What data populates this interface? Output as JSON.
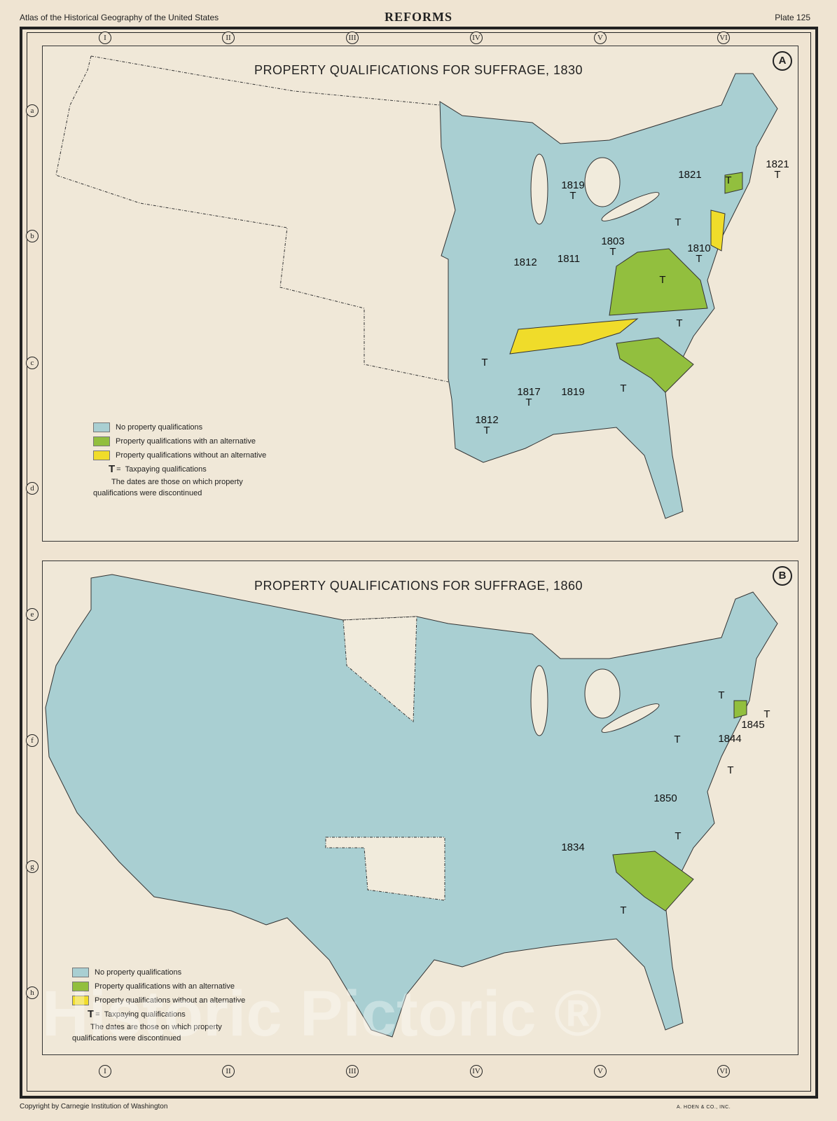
{
  "header": {
    "atlas": "Atlas of the Historical Geography of the United States",
    "title": "REFORMS",
    "plate": "Plate 125"
  },
  "footer": {
    "copyright": "Copyright by Carnegie Institution of Washington",
    "printer": "A. HOEN & CO., INC."
  },
  "grid": {
    "columns": [
      "I",
      "II",
      "III",
      "IV",
      "V",
      "VI"
    ],
    "rows_top": [
      "a",
      "b",
      "c",
      "d"
    ],
    "rows_bottom": [
      "e",
      "f",
      "g",
      "h"
    ]
  },
  "colors": {
    "none": "#a9cfd2",
    "with_alternative": "#92bf3e",
    "without_alternative": "#f0dc2a",
    "unmapped": "#f1ebdc"
  },
  "map_a": {
    "letter": "A",
    "title": "PROPERTY QUALIFICATIONS FOR SUFFRAGE, 1830",
    "labels": [
      "1821",
      "1821\nT",
      "T",
      "1819\nT",
      "T",
      "1803\nT",
      "1810\nT",
      "1812",
      "1811",
      "T",
      "T",
      "T",
      "1817\nT",
      "1819",
      "T",
      "1812\nT"
    ]
  },
  "map_b": {
    "letter": "B",
    "title": "PROPERTY QUALIFICATIONS FOR SUFFRAGE, 1860",
    "labels": [
      "T",
      "T",
      "1845",
      "1844",
      "T",
      "T",
      "1850",
      "1834",
      "T",
      "T"
    ]
  },
  "legend": {
    "items": [
      {
        "label": "No property qualifications",
        "color": "#a9cfd2"
      },
      {
        "label": "Property qualifications with an alternative",
        "color": "#92bf3e"
      },
      {
        "label": "Property qualifications without an alternative",
        "color": "#f0dc2a"
      }
    ],
    "t_symbol": "T",
    "t_eq": "=",
    "t_label": "Taxpaying qualifications",
    "note": "The dates are those on which property qualifications were discontinued"
  },
  "watermark": "Historic Pictoric ®"
}
